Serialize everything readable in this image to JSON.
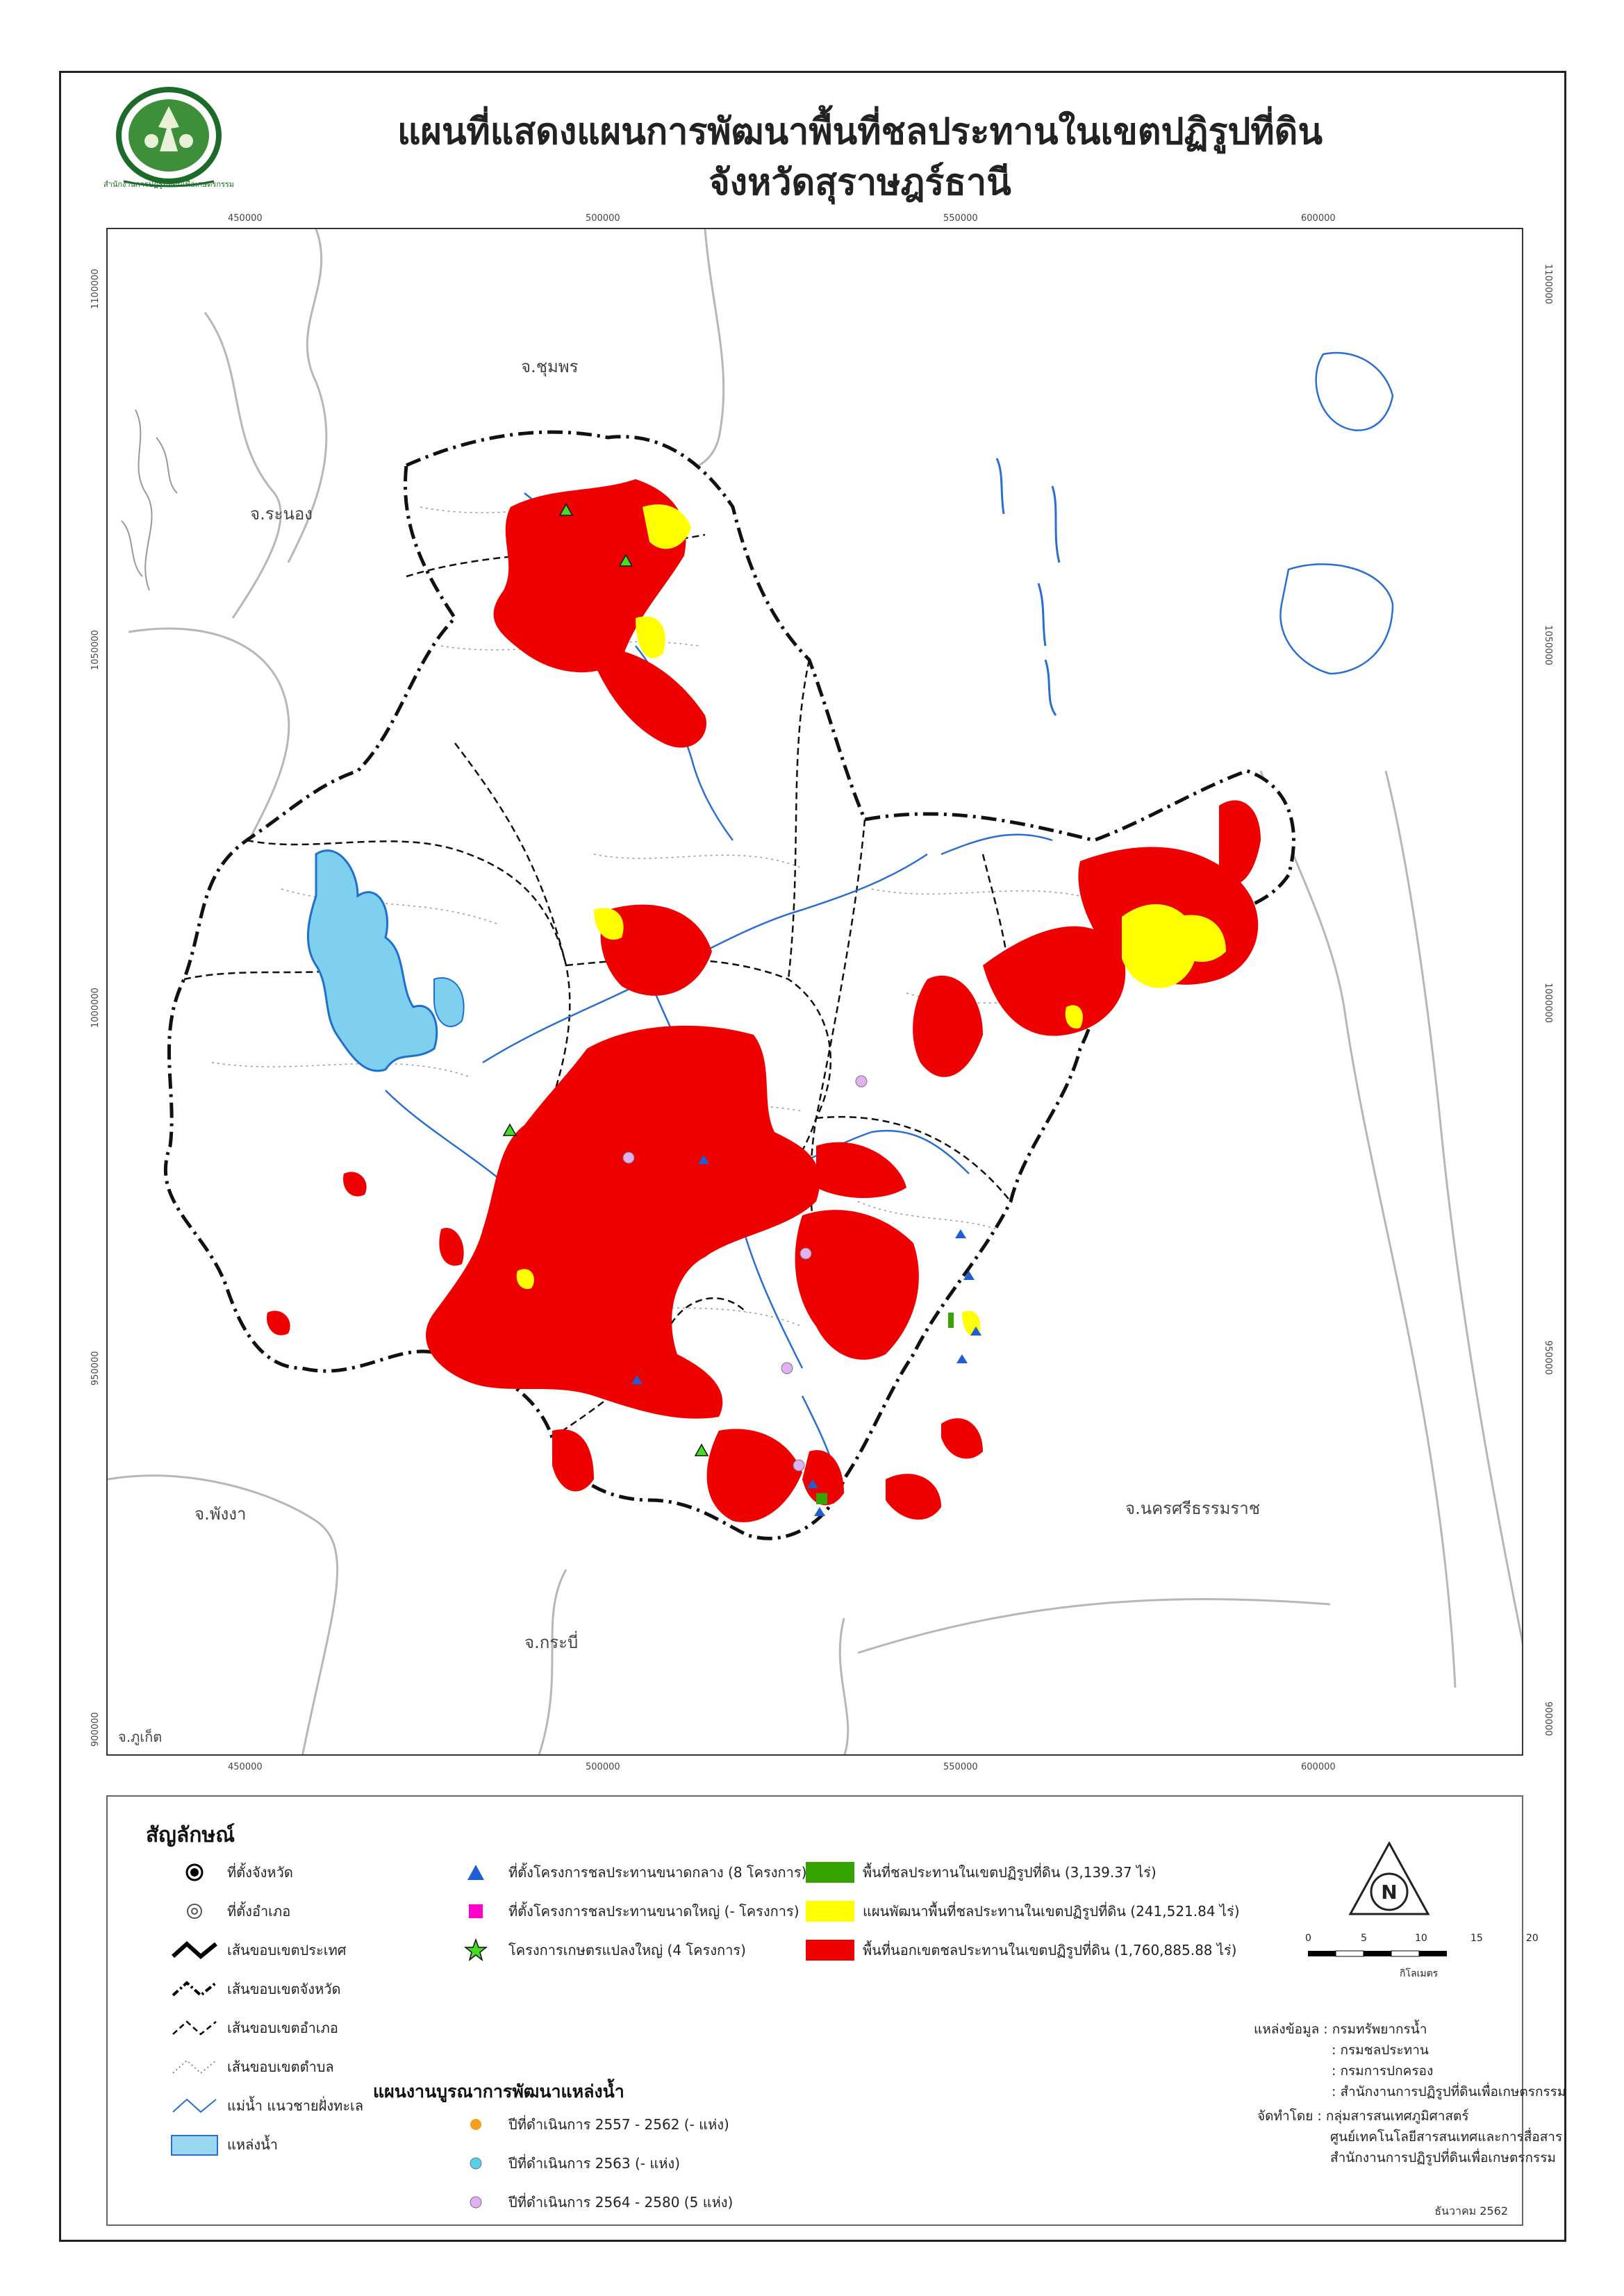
{
  "title": {
    "line1": "แผนที่แสดงแผนการพัฒนาพื้นที่ชลประทานในเขตปฏิรูปที่ดิน",
    "line2": "จังหวัดสุราษฎร์ธานี"
  },
  "logo": {
    "icon": "alro-seal-icon",
    "text": "สำนักงานการปฏิรูปที่ดินเพื่อเกษตรกรรม"
  },
  "grid": {
    "x_ticks": [
      "450000",
      "500000",
      "550000",
      "600000"
    ],
    "y_ticks": [
      "1100000",
      "1050000",
      "1000000",
      "950000",
      "900000"
    ]
  },
  "map": {
    "province_labels": {
      "chumphon": "จ.ชุมพร",
      "ranong": "จ.ระนอง",
      "phangnga": "จ.พังงา",
      "krabi": "จ.กระบี่",
      "nakhon": "จ.นครศรีธรรมราช",
      "phuket": "จ.ภูเก็ต"
    },
    "colors": {
      "outside_irrigation": "#ef0000",
      "irrigation_plan": "#ffff00",
      "irrigation_area": "#35a300",
      "water_body": "#9ad7f0",
      "river": "#2a6fd0",
      "neighbor_boundary": "#b7b7b7"
    }
  },
  "legend": {
    "title": "สัญลักษณ์",
    "subheading": "แผนงานบูรณาการพัฒนาแหล่งน้ำ",
    "items": {
      "province_seat": "ที่ตั้งจังหวัด",
      "district_seat": "ที่ตั้งอำเภอ",
      "country_boundary": "เส้นขอบเขตประเทศ",
      "province_boundary": "เส้นขอบเขตจังหวัด",
      "district_boundary": "เส้นขอบเขตอำเภอ",
      "subdistrict_boundary": "เส้นขอบเขตตำบล",
      "river_coast": "แม่น้ำ แนวชายฝั่งทะเล",
      "water_body": "แหล่งน้ำ",
      "medium_project": "ที่ตั้งโครงการชลประทานขนาดกลาง (8 โครงการ)",
      "large_project": "ที่ตั้งโครงการชลประทานขนาดใหญ่ (- โครงการ)",
      "big_farm_project": "โครงการเกษตรแปลงใหญ่ (4 โครงการ)",
      "year_2557": "ปีที่ดำเนินการ 2557 - 2562 (- แห่ง)",
      "year_2563": "ปีที่ดำเนินการ 2563 (- แห่ง)",
      "year_2564": "ปีที่ดำเนินการ 2564 - 2580 (5 แห่ง)",
      "area_irrigated": "พื้นที่ชลประทานในเขตปฏิรูปที่ดิน (3,139.37 ไร่)",
      "area_plan": "แผนพัฒนาพื้นที่ชลประทานในเขตปฏิรูปที่ดิน (241,521.84 ไร่)",
      "area_outside": "พื้นที่นอกเขตชลประทานในเขตปฏิรูปที่ดิน (1,760,885.88 ไร่)"
    },
    "marker_colors": {
      "medium_project": "#1f5fd6",
      "large_project": "#ff00cc",
      "big_farm_project": "#44dd22",
      "year_2557": "#f0a020",
      "year_2563": "#55d0e8",
      "year_2564": "#e0b0f0"
    }
  },
  "scale": {
    "ticks": [
      "0",
      "5",
      "10",
      "15",
      "20"
    ],
    "unit": "กิโลเมตร"
  },
  "sources": {
    "lines": [
      "แหล่งข้อมูล : กรมทรัพยากรน้ำ",
      ": กรมชลประทาน",
      ": กรมการปกครอง",
      ": สำนักงานการปฏิรูปที่ดินเพื่อเกษตรกรรม"
    ],
    "prepared": [
      "จัดทำโดย : กลุ่มสารสนเทศภูมิศาสตร์",
      "ศูนย์เทคโนโลยีสารสนเทศและการสื่อสาร",
      "สำนักงานการปฏิรูปที่ดินเพื่อเกษตรกรรม"
    ]
  },
  "date": "ธันวาคม 2562"
}
